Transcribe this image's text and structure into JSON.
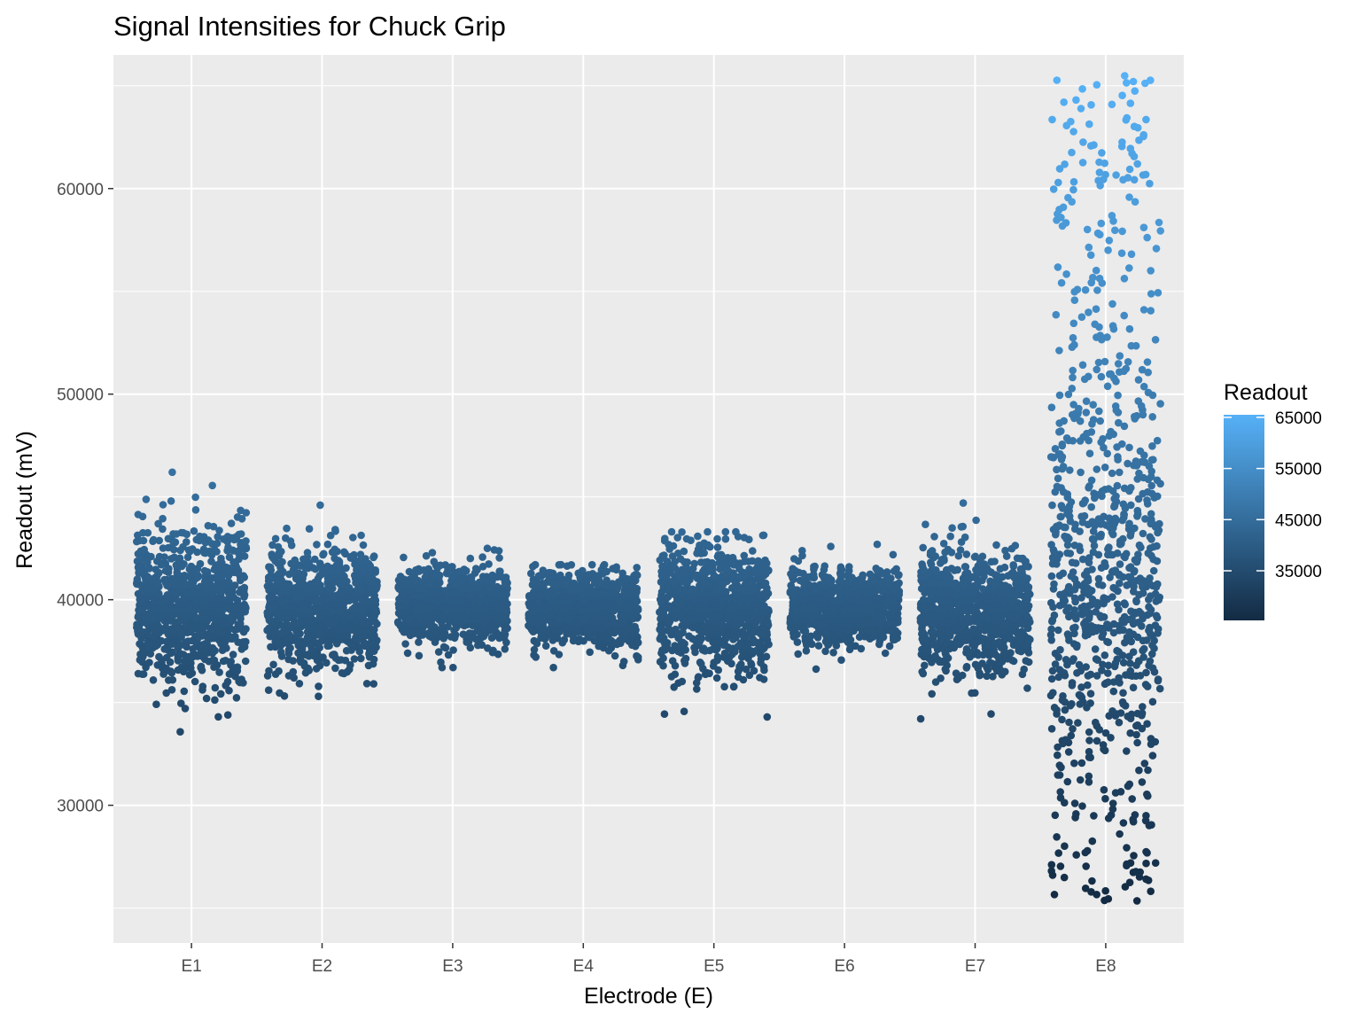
{
  "chart_data": {
    "type": "scatter",
    "title": "Signal Intensities for Chuck Grip",
    "xlabel": "Electrode (E)",
    "ylabel": "Readout (mV)",
    "categories": [
      "E1",
      "E2",
      "E3",
      "E4",
      "E5",
      "E6",
      "E7",
      "E8"
    ],
    "ylim": [
      23300,
      66500
    ],
    "y_ticks": [
      30000,
      40000,
      50000,
      60000
    ],
    "y_tick_labels": [
      "30000",
      "40000",
      "50000",
      "60000"
    ],
    "grid": true,
    "jitter": "horizontal",
    "series": [
      {
        "category": "E1",
        "center": 39700,
        "min": 31400,
        "max": 46200,
        "spread": "wide"
      },
      {
        "category": "E2",
        "center": 39600,
        "min": 34900,
        "max": 46300,
        "spread": "moderate"
      },
      {
        "category": "E3",
        "center": 39800,
        "min": 36700,
        "max": 42500,
        "spread": "narrow"
      },
      {
        "category": "E4",
        "center": 39500,
        "min": 36700,
        "max": 41700,
        "spread": "narrow"
      },
      {
        "category": "E5",
        "center": 39600,
        "min": 34300,
        "max": 43300,
        "spread": "moderate"
      },
      {
        "category": "E6",
        "center": 39600,
        "min": 36300,
        "max": 43000,
        "spread": "narrow"
      },
      {
        "category": "E7",
        "center": 39400,
        "min": 31800,
        "max": 44700,
        "spread": "moderate"
      },
      {
        "category": "E8",
        "center": 41000,
        "min": 25300,
        "max": 65500,
        "spread": "very wide"
      }
    ],
    "legend": {
      "title": "Readout",
      "position": "right",
      "type": "colorbar",
      "labels": [
        "65000",
        "55000",
        "45000",
        "35000"
      ],
      "values": [
        65000,
        55000,
        45000,
        35000
      ],
      "range": [
        25300,
        65500
      ],
      "colors": {
        "low": "#132b43",
        "high": "#56b1f7"
      }
    },
    "panel_background": "#ebebeb",
    "grid_color": "#ffffff"
  }
}
